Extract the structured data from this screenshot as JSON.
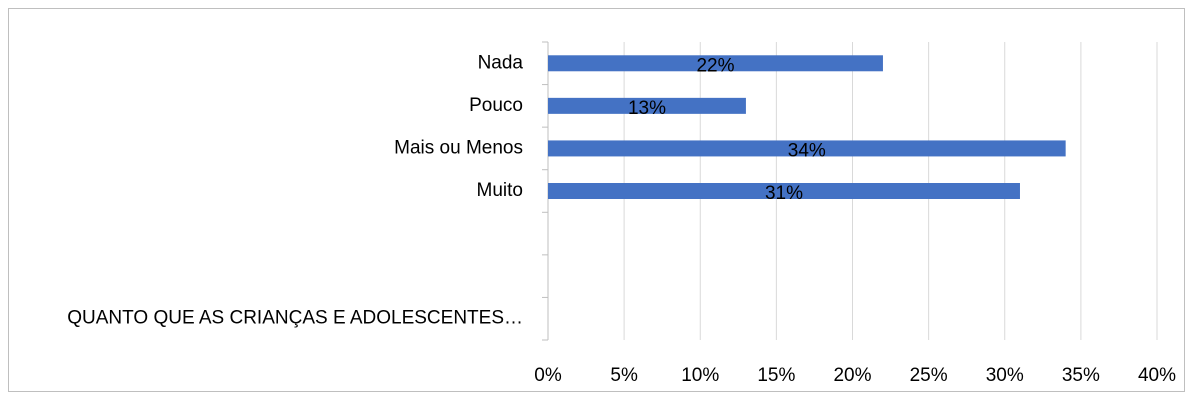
{
  "chart_data": {
    "type": "barh",
    "categories": [
      "Nada",
      "Pouco",
      "Mais ou Menos",
      "Muito",
      null,
      null,
      "QUANTO QUE AS CRIANÇAS E ADOLESCENTES…"
    ],
    "values": [
      22,
      13,
      34,
      31,
      null,
      null,
      null
    ],
    "value_labels": [
      "22%",
      "13%",
      "34%",
      "31%",
      null,
      null,
      null
    ],
    "color": "#4472c4",
    "xlim": [
      0,
      40
    ],
    "xticks": [
      {
        "value": 0,
        "label": "0%"
      },
      {
        "value": 5,
        "label": "5%"
      },
      {
        "value": 10,
        "label": "10%"
      },
      {
        "value": 15,
        "label": "15%"
      },
      {
        "value": 20,
        "label": "20%"
      },
      {
        "value": 25,
        "label": "25%"
      },
      {
        "value": 30,
        "label": "30%"
      },
      {
        "value": 35,
        "label": "35%"
      },
      {
        "value": 40,
        "label": "40%"
      }
    ],
    "grid": true
  }
}
